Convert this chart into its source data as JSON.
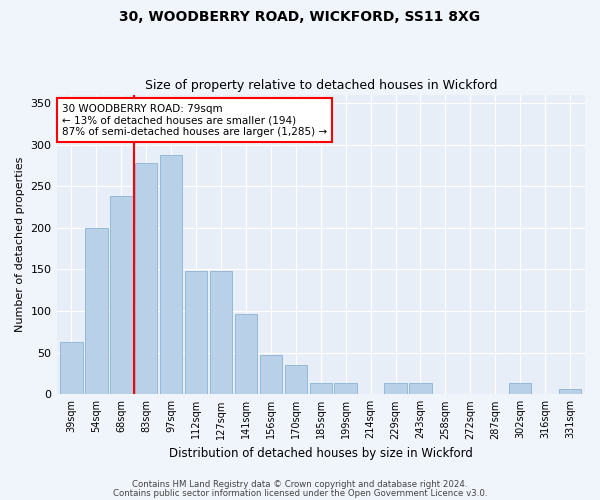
{
  "title": "30, WOODBERRY ROAD, WICKFORD, SS11 8XG",
  "subtitle": "Size of property relative to detached houses in Wickford",
  "xlabel": "Distribution of detached houses by size in Wickford",
  "ylabel": "Number of detached properties",
  "categories": [
    "39sqm",
    "54sqm",
    "68sqm",
    "83sqm",
    "97sqm",
    "112sqm",
    "127sqm",
    "141sqm",
    "156sqm",
    "170sqm",
    "185sqm",
    "199sqm",
    "214sqm",
    "229sqm",
    "243sqm",
    "258sqm",
    "272sqm",
    "287sqm",
    "302sqm",
    "316sqm",
    "331sqm"
  ],
  "values": [
    63,
    200,
    238,
    278,
    288,
    148,
    148,
    97,
    47,
    35,
    13,
    13,
    0,
    13,
    13,
    0,
    0,
    0,
    13,
    0,
    6
  ],
  "bar_color": "#b8d0e8",
  "bar_edge_color": "#8ab4d4",
  "annotation_box_text": "30 WOODBERRY ROAD: 79sqm\n← 13% of detached houses are smaller (194)\n87% of semi-detached houses are larger (1,285) →",
  "annotation_box_color": "white",
  "annotation_box_edge_color": "red",
  "vline_color": "red",
  "vline_x": 2.5,
  "ylim": [
    0,
    360
  ],
  "yticks": [
    0,
    50,
    100,
    150,
    200,
    250,
    300,
    350
  ],
  "fig_bg": "#f0f5fb",
  "ax_bg": "#e8eef8",
  "grid_color": "white",
  "footer1": "Contains HM Land Registry data © Crown copyright and database right 2024.",
  "footer2": "Contains public sector information licensed under the Open Government Licence v3.0."
}
